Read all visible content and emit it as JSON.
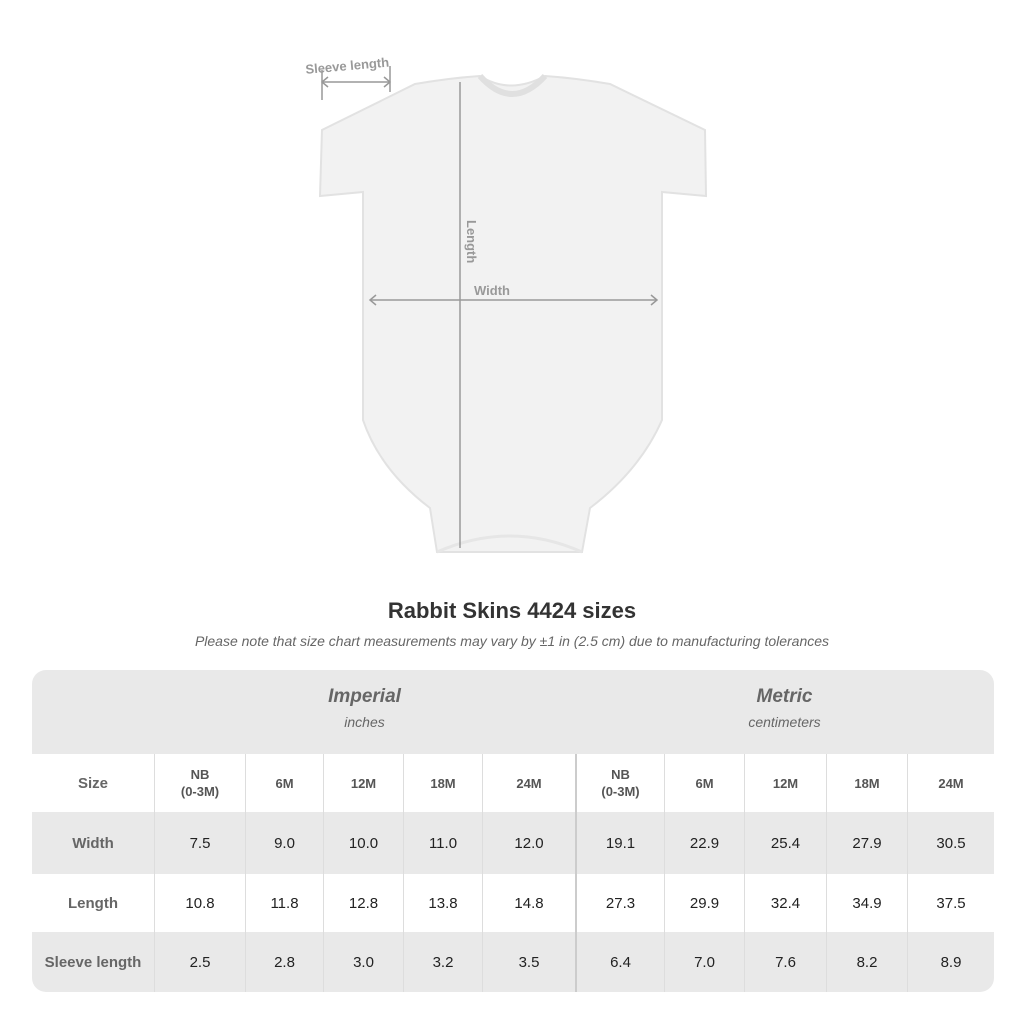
{
  "diagram": {
    "sleeve_label": "Sleeve length",
    "length_label": "Length",
    "width_label": "Width"
  },
  "title": "Rabbit Skins 4424 sizes",
  "note": "Please note that size chart measurements may vary by ±1 in (2.5 cm) due to manufacturing tolerances",
  "table": {
    "imperial": {
      "title": "Imperial",
      "unit": "inches"
    },
    "metric": {
      "title": "Metric",
      "unit": "centimeters"
    },
    "size_label": "Size",
    "sizes": [
      "NB\n(0-3M)",
      "6M",
      "12M",
      "18M",
      "24M"
    ],
    "rows": [
      {
        "label": "Width",
        "imperial": [
          "7.5",
          "9.0",
          "10.0",
          "11.0",
          "12.0"
        ],
        "metric": [
          "19.1",
          "22.9",
          "25.4",
          "27.9",
          "30.5"
        ]
      },
      {
        "label": "Length",
        "imperial": [
          "10.8",
          "11.8",
          "12.8",
          "13.8",
          "14.8"
        ],
        "metric": [
          "27.3",
          "29.9",
          "32.4",
          "34.9",
          "37.5"
        ]
      },
      {
        "label": "Sleeve length",
        "imperial": [
          "2.5",
          "2.8",
          "3.0",
          "3.2",
          "3.5"
        ],
        "metric": [
          "6.4",
          "7.0",
          "7.6",
          "8.2",
          "8.9"
        ]
      }
    ]
  }
}
